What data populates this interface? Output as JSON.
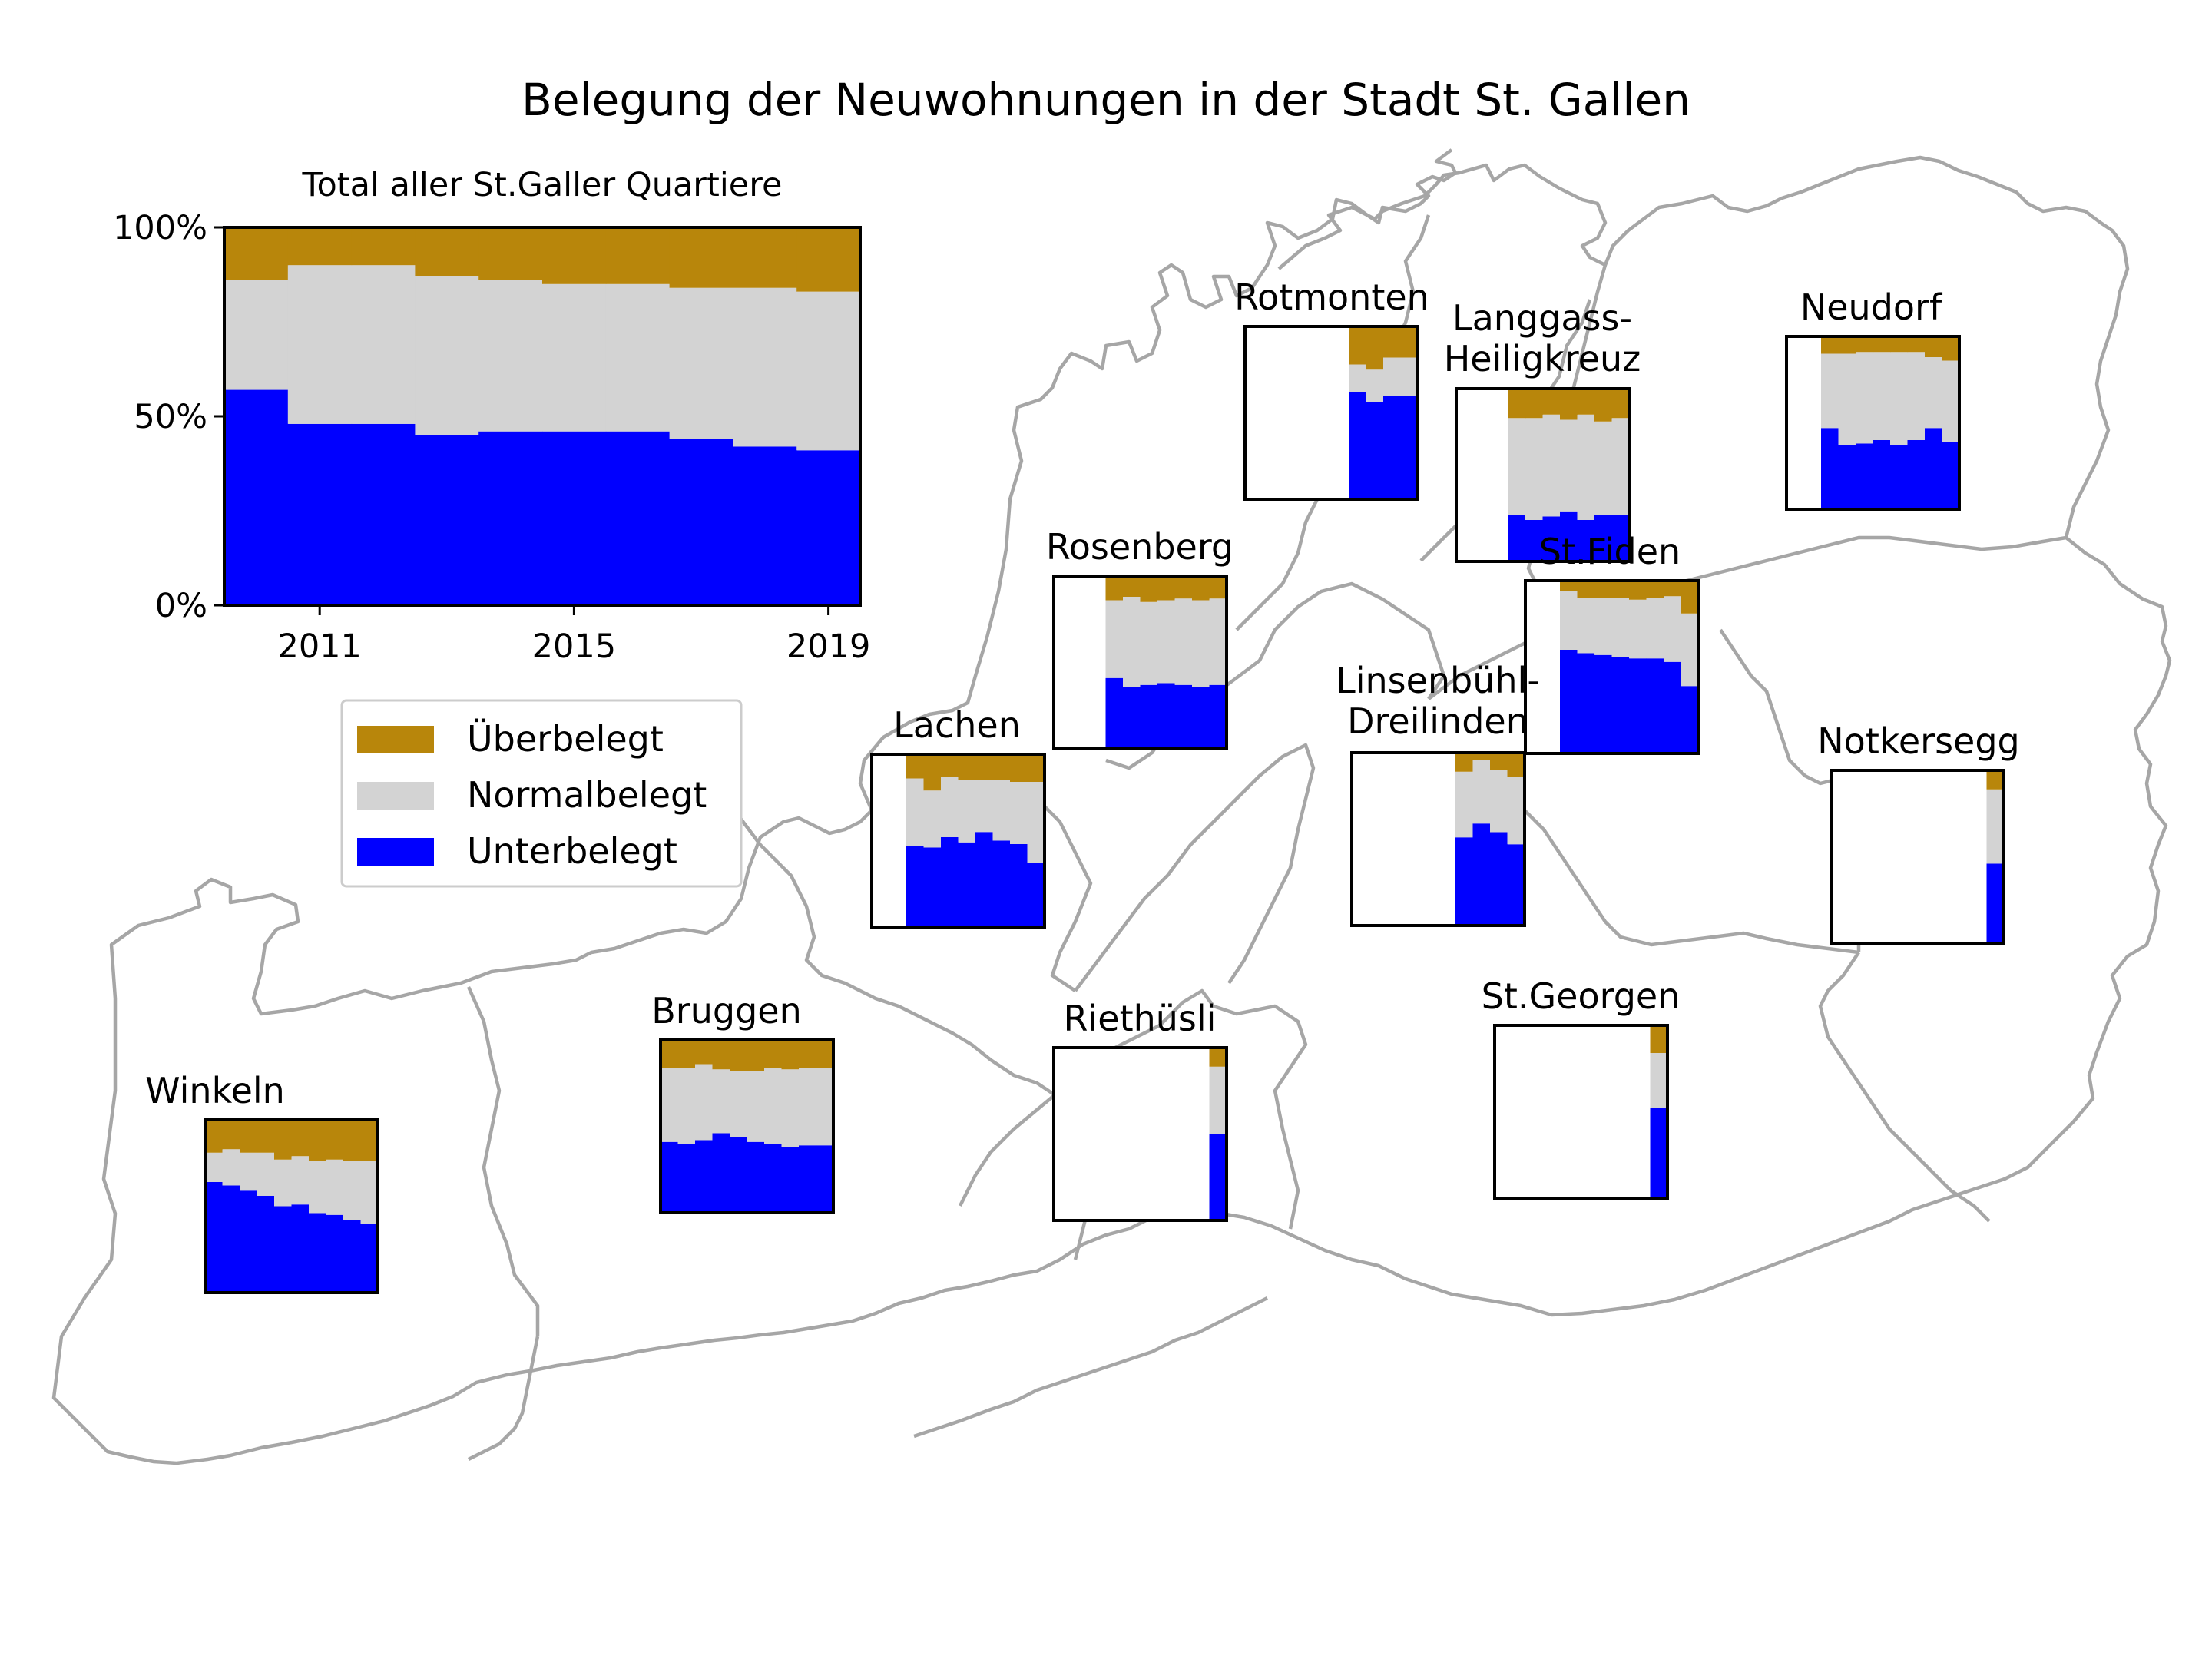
{
  "title": "Belegung der Neuwohnungen in der Stadt St. Gallen",
  "colors": {
    "ueberbelegt": "#b8860b",
    "normalbelegt": "#d3d3d3",
    "unterbelegt": "#0000ff",
    "boundary": "#a6a6a6"
  },
  "legend": {
    "ueberbelegt": "Überbelegt",
    "normalbelegt": "Normalbelegt",
    "unterbelegt": "Unterbelegt"
  },
  "chart_data": {
    "type": "area",
    "stacked": true,
    "step": true,
    "series_order": [
      "Unterbelegt",
      "Normalbelegt",
      "Überbelegt"
    ],
    "total": {
      "title": "Total aller St.Galler Quartiere",
      "x_ticks": [
        "2011",
        "2015",
        "2019"
      ],
      "y_ticks": [
        "0%",
        "50%",
        "100%"
      ],
      "ylim": [
        0,
        1
      ],
      "years": [
        2010,
        2011,
        2012,
        2013,
        2014,
        2015,
        2016,
        2017,
        2018,
        2019
      ],
      "unter": [
        0.57,
        0.48,
        0.48,
        0.45,
        0.46,
        0.46,
        0.46,
        0.44,
        0.42,
        0.41
      ],
      "normal": [
        0.29,
        0.42,
        0.42,
        0.42,
        0.4,
        0.39,
        0.39,
        0.4,
        0.42,
        0.42
      ]
    },
    "quarters": [
      {
        "name": "Winkeln",
        "years": [
          2010,
          2011,
          2012,
          2013,
          2014,
          2015,
          2016,
          2017,
          2018,
          2019
        ],
        "unter": [
          0.64,
          0.62,
          0.59,
          0.56,
          0.5,
          0.51,
          0.46,
          0.45,
          0.42,
          0.4
        ],
        "normal": [
          0.17,
          0.21,
          0.22,
          0.25,
          0.27,
          0.28,
          0.3,
          0.32,
          0.34,
          0.36
        ]
      },
      {
        "name": "Bruggen",
        "years": [
          2010,
          2011,
          2012,
          2013,
          2014,
          2015,
          2016,
          2017,
          2018,
          2019
        ],
        "unter": [
          0.41,
          0.4,
          0.42,
          0.46,
          0.44,
          0.41,
          0.4,
          0.38,
          0.39,
          0.39
        ],
        "normal": [
          0.43,
          0.44,
          0.44,
          0.37,
          0.38,
          0.41,
          0.44,
          0.45,
          0.45,
          0.45
        ]
      },
      {
        "name": "Lachen",
        "years": [
          2010,
          2011,
          2012,
          2013,
          2014,
          2015,
          2016,
          2017,
          2018,
          2019
        ],
        "unter": [
          0.47,
          0.46,
          0.52,
          0.49,
          0.55,
          0.5,
          0.48,
          0.37
        ],
        "normal": [
          0.39,
          0.33,
          0.35,
          0.36,
          0.3,
          0.35,
          0.36,
          0.47
        ]
      },
      {
        "name": "Rosenberg",
        "years": [
          2010,
          2011,
          2012,
          2013,
          2014,
          2015,
          2016,
          2017,
          2018,
          2019
        ],
        "unter": [
          0.41,
          0.36,
          0.37,
          0.38,
          0.37,
          0.36,
          0.37
        ],
        "normal": [
          0.45,
          0.52,
          0.48,
          0.48,
          0.5,
          0.5,
          0.5
        ]
      },
      {
        "name": "Rotmonten",
        "years": [
          2010,
          2011,
          2012,
          2013,
          2014,
          2015,
          2016,
          2017,
          2018,
          2019
        ],
        "unter": [
          0.62,
          0.56,
          0.6,
          0.6
        ],
        "normal": [
          0.16,
          0.19,
          0.22,
          0.22
        ]
      },
      {
        "name": "Langgass-\nHeiligkreuz",
        "years": [
          2010,
          2011,
          2012,
          2013,
          2014,
          2015,
          2016,
          2017,
          2018,
          2019
        ],
        "unter": [
          0.27,
          0.24,
          0.26,
          0.29,
          0.24,
          0.27,
          0.27
        ],
        "normal": [
          0.56,
          0.59,
          0.59,
          0.53,
          0.61,
          0.54,
          0.56
        ]
      },
      {
        "name": "Neudorf",
        "years": [
          2010,
          2011,
          2012,
          2013,
          2014,
          2015,
          2016,
          2017,
          2018,
          2019
        ],
        "unter": [
          0.47,
          0.37,
          0.38,
          0.4,
          0.37,
          0.4,
          0.47,
          0.39
        ],
        "normal": [
          0.43,
          0.53,
          0.53,
          0.51,
          0.54,
          0.51,
          0.41,
          0.47
        ]
      },
      {
        "name": "St.Fiden",
        "years": [
          2010,
          2011,
          2012,
          2013,
          2014,
          2015,
          2016,
          2017,
          2018,
          2019
        ],
        "unter": [
          0.6,
          0.58,
          0.57,
          0.56,
          0.55,
          0.55,
          0.53,
          0.39
        ],
        "normal": [
          0.34,
          0.32,
          0.33,
          0.34,
          0.34,
          0.35,
          0.38,
          0.42
        ]
      },
      {
        "name": "Linsenbühl-\nDreilinden",
        "years": [
          2010,
          2011,
          2012,
          2013,
          2014,
          2015,
          2016,
          2017,
          2018,
          2019
        ],
        "unter": [
          0.51,
          0.59,
          0.54,
          0.47
        ],
        "normal": [
          0.38,
          0.37,
          0.36,
          0.39
        ]
      },
      {
        "name": "Notkersegg",
        "years": [
          2010,
          2011,
          2012,
          2013,
          2014,
          2015,
          2016,
          2017,
          2018,
          2019
        ],
        "unter": [
          0.46
        ],
        "normal": [
          0.43
        ]
      },
      {
        "name": "St.Georgen",
        "years": [
          2010,
          2011,
          2012,
          2013,
          2014,
          2015,
          2016,
          2017,
          2018,
          2019
        ],
        "unter": [
          0.52
        ],
        "normal": [
          0.32
        ]
      },
      {
        "name": "Riethüsli",
        "years": [
          2010,
          2011,
          2012,
          2013,
          2014,
          2015,
          2016,
          2017,
          2018,
          2019
        ],
        "unter": [
          0.5
        ],
        "normal": [
          0.39
        ]
      }
    ]
  }
}
